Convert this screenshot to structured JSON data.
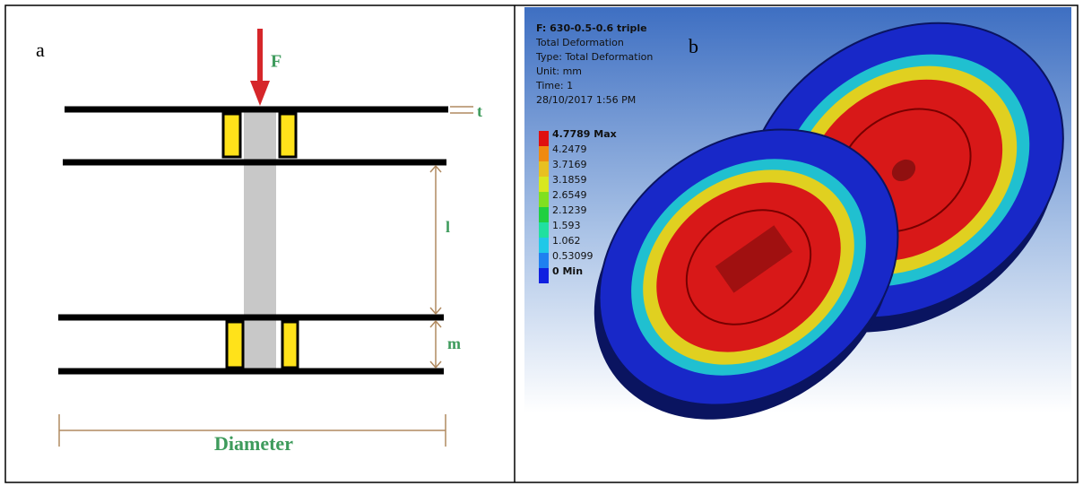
{
  "panel_a": {
    "label": "a",
    "force": "F",
    "thickness": "t",
    "length": "l",
    "gap": "m",
    "diameter": "Diameter"
  },
  "panel_b": {
    "label": "b",
    "info": [
      "F: 630-0.5-0.6 triple",
      "Total Deformation",
      "Type: Total Deformation",
      "Unit: mm",
      "Time: 1",
      "28/10/2017 1:56 PM"
    ],
    "legend": {
      "items": [
        {
          "label": "4.7789 Max",
          "color": "#e01010"
        },
        {
          "label": "4.2479",
          "color": "#f08a10"
        },
        {
          "label": "3.7169",
          "color": "#e8c020"
        },
        {
          "label": "3.1859",
          "color": "#d8e820"
        },
        {
          "label": "2.6549",
          "color": "#80e020"
        },
        {
          "label": "2.1239",
          "color": "#20d040"
        },
        {
          "label": "1.593",
          "color": "#20e0a0"
        },
        {
          "label": "1.062",
          "color": "#20c8e8"
        },
        {
          "label": "0.53099",
          "color": "#2080f0"
        },
        {
          "label": "0 Min",
          "color": "#1020e0"
        }
      ]
    }
  }
}
